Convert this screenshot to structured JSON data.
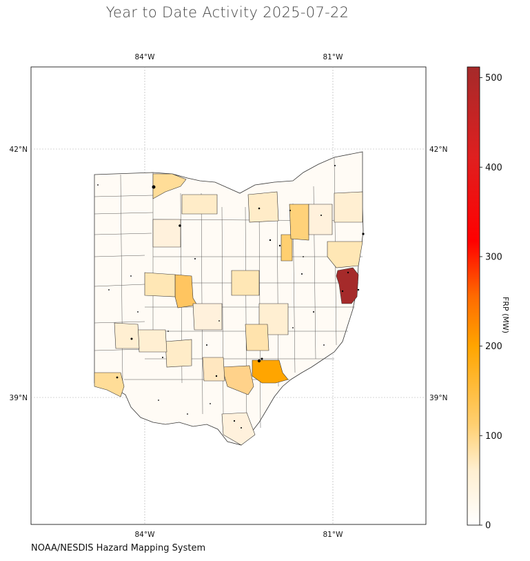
{
  "title": "Year to Date Activity 2025-07-22",
  "credit": "NOAA/NESDIS Hazard Mapping System",
  "colorbar": {
    "label": "FRP (MW)",
    "min": 0,
    "max": 512,
    "ticks": [
      "0",
      "100",
      "200",
      "300",
      "400",
      "500"
    ],
    "tick_values": [
      0,
      100,
      200,
      300,
      400,
      500
    ],
    "colors": [
      "#ffffff",
      "#fff0d0",
      "#ffd27a",
      "#ffa500",
      "#ff4500",
      "#ff0000",
      "#a52a2a"
    ]
  },
  "map": {
    "region": "Ohio",
    "lon_ticks": [
      "84°W",
      "81°W"
    ],
    "lat_ticks": [
      "42°N",
      "39°N"
    ],
    "gridlines": true,
    "county_fill_levels": {
      "Columbiana": 500,
      "Monroe": 200,
      "Tuscarawas": 160,
      "Wyandot": 150,
      "Trumbull": 90,
      "Lucas": 90,
      "Scioto": 90,
      "Adams": 70,
      "Hamilton": 60
    }
  }
}
